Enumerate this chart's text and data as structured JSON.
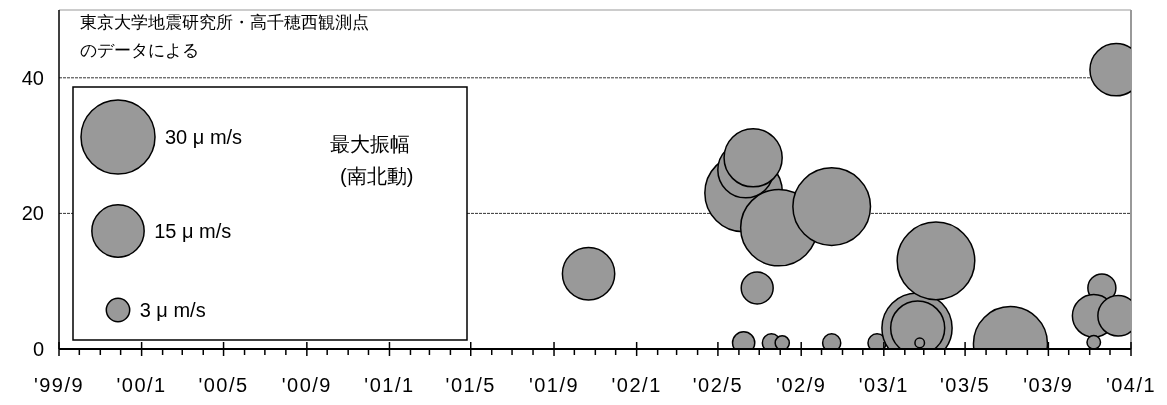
{
  "chart_data": {
    "type": "bubble",
    "annotations": [
      "東京大学地震研究所・高千穂西観測点のデータによる"
    ],
    "legend_title": "最大振幅\n(南北動)",
    "size_legend": [
      {
        "value": 30,
        "label": "30 μ m/s"
      },
      {
        "value": 15,
        "label": "15 μ m/s"
      },
      {
        "value": 3,
        "label": "3 μ m/s"
      }
    ],
    "xlim": [
      "1999-09",
      "2004-01"
    ],
    "xticks": [
      {
        "value": "1999-09",
        "label": "'99/9"
      },
      {
        "value": "1999-10",
        "label": null
      },
      {
        "value": "1999-11",
        "label": null
      },
      {
        "value": "1999-12",
        "label": null
      },
      {
        "value": "2000-01",
        "label": "'00/1"
      },
      {
        "value": "2000-02",
        "label": null
      },
      {
        "value": "2000-03",
        "label": null
      },
      {
        "value": "2000-04",
        "label": null
      },
      {
        "value": "2000-05",
        "label": "'00/5"
      },
      {
        "value": "2000-06",
        "label": null
      },
      {
        "value": "2000-07",
        "label": null
      },
      {
        "value": "2000-08",
        "label": null
      },
      {
        "value": "2000-09",
        "label": "'00/9"
      },
      {
        "value": "2000-10",
        "label": null
      },
      {
        "value": "2000-11",
        "label": null
      },
      {
        "value": "2000-12",
        "label": null
      },
      {
        "value": "2001-01",
        "label": "'01/1"
      },
      {
        "value": "2001-02",
        "label": null
      },
      {
        "value": "2001-03",
        "label": null
      },
      {
        "value": "2001-04",
        "label": null
      },
      {
        "value": "2001-05",
        "label": "'01/5"
      },
      {
        "value": "2001-06",
        "label": null
      },
      {
        "value": "2001-07",
        "label": null
      },
      {
        "value": "2001-08",
        "label": null
      },
      {
        "value": "2001-09",
        "label": "'01/9"
      },
      {
        "value": "2001-10",
        "label": null
      },
      {
        "value": "2001-11",
        "label": null
      },
      {
        "value": "2001-12",
        "label": null
      },
      {
        "value": "2002-01",
        "label": "'02/1"
      },
      {
        "value": "2002-02",
        "label": null
      },
      {
        "value": "2002-03",
        "label": null
      },
      {
        "value": "2002-04",
        "label": null
      },
      {
        "value": "2002-05",
        "label": "'02/5"
      },
      {
        "value": "2002-06",
        "label": null
      },
      {
        "value": "2002-07",
        "label": null
      },
      {
        "value": "2002-08",
        "label": null
      },
      {
        "value": "2002-09",
        "label": "'02/9"
      },
      {
        "value": "2002-10",
        "label": null
      },
      {
        "value": "2002-11",
        "label": null
      },
      {
        "value": "2002-12",
        "label": null
      },
      {
        "value": "2003-01",
        "label": "'03/1"
      },
      {
        "value": "2003-02",
        "label": null
      },
      {
        "value": "2003-03",
        "label": null
      },
      {
        "value": "2003-04",
        "label": null
      },
      {
        "value": "2003-05",
        "label": "'03/5"
      },
      {
        "value": "2003-06",
        "label": null
      },
      {
        "value": "2003-07",
        "label": null
      },
      {
        "value": "2003-08",
        "label": null
      },
      {
        "value": "2003-09",
        "label": "'03/9"
      },
      {
        "value": "2003-10",
        "label": null
      },
      {
        "value": "2003-11",
        "label": null
      },
      {
        "value": "2003-12",
        "label": null
      },
      {
        "value": "2004-01",
        "label": "'04/1"
      }
    ],
    "ylim": [
      0,
      50
    ],
    "yticks": [
      0,
      20,
      40
    ],
    "grid": "y",
    "line_style": "dashed",
    "marker": "circle",
    "series": [
      {
        "color": "#999999",
        "x": [
          "2001-10-22",
          "2002-06-08",
          "2002-06-11",
          "2002-06-22",
          "2002-07-30",
          "2002-10-16",
          "2002-06-28",
          "2002-06-08",
          "2002-07-19",
          "2002-08-04",
          "2002-10-16",
          "2002-12-22",
          "2003-02-19",
          "2003-02-20",
          "2003-02-23",
          "2003-03-19",
          "2003-07-07",
          "2003-12-10",
          "2003-11-19",
          "2003-11-07",
          "2003-12-13",
          "2003-11-07"
        ],
        "values": [
          11.1,
          23,
          26.4,
          28.2,
          17.9,
          21,
          9,
          0.9,
          0.9,
          0.9,
          0.9,
          0.9,
          3.1,
          3.1,
          0.9,
          13,
          0.8,
          41.2,
          9,
          4.9,
          4.9,
          1
        ],
        "sizes": [
          15,
          33,
          17,
          18.5,
          32,
          33,
          5.6,
          2.7,
          1.8,
          1.1,
          1.8,
          1.8,
          27,
          16,
          0.5,
          33,
          30,
          15,
          4.3,
          10,
          9,
          1
        ]
      }
    ]
  }
}
